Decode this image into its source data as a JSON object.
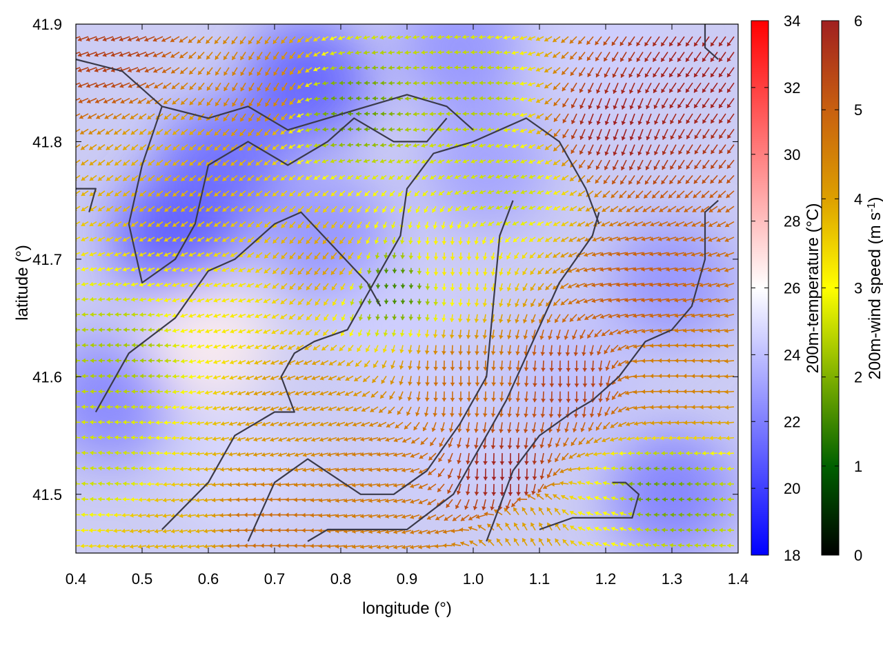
{
  "chart_data": {
    "type": "heatmap",
    "xlabel": "longitude (°)",
    "ylabel": "latitude (°)",
    "xlim": [
      0.4,
      1.4
    ],
    "ylim": [
      41.45,
      41.9
    ],
    "x_ticks": [
      "0.4",
      "0.5",
      "0.6",
      "0.7",
      "0.8",
      "0.9",
      "1.0",
      "1.1",
      "1.2",
      "1.3",
      "1.4"
    ],
    "y_ticks": [
      "41.5",
      "41.6",
      "41.7",
      "41.8",
      "41.9"
    ],
    "temperature_colorbar": {
      "label": "200m-temperature (°C)",
      "range": [
        18,
        34
      ],
      "ticks": [
        "18",
        "20",
        "22",
        "24",
        "26",
        "28",
        "30",
        "32",
        "34"
      ],
      "colors": [
        "#0000ff",
        "#ffffff",
        "#ff0000"
      ]
    },
    "wind_colorbar": {
      "label_main": "200m-wind speed (m s",
      "label_sup": "-1",
      "label_close": ")",
      "range": [
        0,
        6
      ],
      "ticks": [
        "0",
        "1",
        "2",
        "3",
        "4",
        "5",
        "6"
      ],
      "colors": [
        "#000000",
        "#006000",
        "#7fb000",
        "#ffff00",
        "#dda000",
        "#c86010",
        "#a02020"
      ]
    },
    "temperature_blobs": [
      {
        "lon": 0.55,
        "lat": 41.72,
        "t": 20.5
      },
      {
        "lon": 0.75,
        "lat": 41.85,
        "t": 20.8
      },
      {
        "lon": 0.62,
        "lat": 41.78,
        "t": 21.2
      },
      {
        "lon": 0.45,
        "lat": 41.58,
        "t": 22.0
      },
      {
        "lon": 0.78,
        "lat": 41.72,
        "t": 22.5
      },
      {
        "lon": 0.88,
        "lat": 41.64,
        "t": 24.5
      },
      {
        "lon": 1.02,
        "lat": 41.78,
        "t": 23.0
      },
      {
        "lon": 1.3,
        "lat": 41.68,
        "t": 22.5
      },
      {
        "lon": 1.3,
        "lat": 41.5,
        "t": 21.8
      },
      {
        "lon": 1.15,
        "lat": 41.6,
        "t": 24.0
      },
      {
        "lon": 0.95,
        "lat": 41.55,
        "t": 24.5
      },
      {
        "lon": 0.65,
        "lat": 41.52,
        "t": 24.8
      },
      {
        "lon": 0.6,
        "lat": 41.63,
        "t": 26.5
      },
      {
        "lon": 1.2,
        "lat": 41.88,
        "t": 24.5
      },
      {
        "lon": 0.98,
        "lat": 41.88,
        "t": 22.5
      }
    ],
    "wind_field": {
      "description_free": true,
      "grid_step_deg": 0.0125,
      "zones": [
        {
          "lon": 0.48,
          "lat": 41.62,
          "speed": 2.3,
          "dir_deg": 180
        },
        {
          "lon": 0.45,
          "lat": 41.52,
          "speed": 2.6,
          "dir_deg": 175
        },
        {
          "lon": 0.62,
          "lat": 41.66,
          "speed": 3.2,
          "dir_deg": 200
        },
        {
          "lon": 0.55,
          "lat": 41.78,
          "speed": 3.8,
          "dir_deg": 220
        },
        {
          "lon": 0.45,
          "lat": 41.88,
          "speed": 5.5,
          "dir_deg": 200
        },
        {
          "lon": 0.68,
          "lat": 41.85,
          "speed": 4.5,
          "dir_deg": 240
        },
        {
          "lon": 0.82,
          "lat": 41.83,
          "speed": 1.8,
          "dir_deg": 180
        },
        {
          "lon": 0.78,
          "lat": 41.7,
          "speed": 4.0,
          "dir_deg": 230
        },
        {
          "lon": 0.75,
          "lat": 41.58,
          "speed": 4.2,
          "dir_deg": 200
        },
        {
          "lon": 0.85,
          "lat": 41.52,
          "speed": 4.6,
          "dir_deg": 190
        },
        {
          "lon": 0.88,
          "lat": 41.68,
          "speed": 1.5,
          "dir_deg": 270
        },
        {
          "lon": 0.96,
          "lat": 41.7,
          "speed": 3.2,
          "dir_deg": 270
        },
        {
          "lon": 0.98,
          "lat": 41.6,
          "speed": 4.8,
          "dir_deg": 270
        },
        {
          "lon": 1.05,
          "lat": 41.52,
          "speed": 6.0,
          "dir_deg": 270
        },
        {
          "lon": 1.05,
          "lat": 41.76,
          "speed": 2.6,
          "dir_deg": 200
        },
        {
          "lon": 1.0,
          "lat": 41.84,
          "speed": 2.4,
          "dir_deg": 180
        },
        {
          "lon": 1.22,
          "lat": 41.82,
          "speed": 6.0,
          "dir_deg": 250
        },
        {
          "lon": 1.35,
          "lat": 41.86,
          "speed": 6.0,
          "dir_deg": 235
        },
        {
          "lon": 1.25,
          "lat": 41.68,
          "speed": 5.0,
          "dir_deg": 190
        },
        {
          "lon": 1.3,
          "lat": 41.6,
          "speed": 4.5,
          "dir_deg": 180
        },
        {
          "lon": 1.15,
          "lat": 41.6,
          "speed": 5.5,
          "dir_deg": 270
        },
        {
          "lon": 1.28,
          "lat": 41.5,
          "speed": 1.8,
          "dir_deg": 180
        },
        {
          "lon": 1.2,
          "lat": 41.48,
          "speed": 3.0,
          "dir_deg": 160
        },
        {
          "lon": 1.1,
          "lat": 41.47,
          "speed": 4.0,
          "dir_deg": 120
        },
        {
          "lon": 0.55,
          "lat": 41.47,
          "speed": 3.8,
          "dir_deg": 190
        },
        {
          "lon": 0.7,
          "lat": 41.47,
          "speed": 4.8,
          "dir_deg": 180
        }
      ]
    },
    "terrain_contours": [
      [
        [
          0.4,
          41.87
        ],
        [
          0.47,
          41.86
        ],
        [
          0.53,
          41.83
        ],
        [
          0.6,
          41.82
        ],
        [
          0.66,
          41.83
        ],
        [
          0.72,
          41.81
        ],
        [
          0.78,
          41.82
        ],
        [
          0.84,
          41.83
        ],
        [
          0.9,
          41.84
        ],
        [
          0.96,
          41.83
        ],
        [
          1.0,
          41.81
        ]
      ],
      [
        [
          0.53,
          41.83
        ],
        [
          0.5,
          41.78
        ],
        [
          0.48,
          41.73
        ],
        [
          0.5,
          41.68
        ],
        [
          0.55,
          41.7
        ],
        [
          0.58,
          41.73
        ],
        [
          0.6,
          41.78
        ],
        [
          0.66,
          41.8
        ],
        [
          0.72,
          41.78
        ],
        [
          0.78,
          41.8
        ],
        [
          0.82,
          41.82
        ],
        [
          0.88,
          41.8
        ],
        [
          0.93,
          41.8
        ],
        [
          0.96,
          41.82
        ]
      ],
      [
        [
          0.43,
          41.57
        ],
        [
          0.48,
          41.62
        ],
        [
          0.55,
          41.65
        ],
        [
          0.6,
          41.69
        ],
        [
          0.64,
          41.7
        ],
        [
          0.7,
          41.73
        ],
        [
          0.74,
          41.74
        ],
        [
          0.79,
          41.71
        ],
        [
          0.84,
          41.68
        ],
        [
          0.86,
          41.66
        ]
      ],
      [
        [
          0.53,
          41.47
        ],
        [
          0.6,
          41.51
        ],
        [
          0.64,
          41.55
        ],
        [
          0.7,
          41.57
        ],
        [
          0.73,
          41.57
        ],
        [
          0.71,
          41.6
        ],
        [
          0.73,
          41.62
        ],
        [
          0.76,
          41.63
        ],
        [
          0.81,
          41.64
        ],
        [
          0.85,
          41.68
        ],
        [
          0.89,
          41.72
        ],
        [
          0.9,
          41.76
        ],
        [
          0.94,
          41.79
        ],
        [
          1.0,
          41.8
        ],
        [
          1.08,
          41.82
        ],
        [
          1.13,
          41.8
        ],
        [
          1.17,
          41.76
        ],
        [
          1.19,
          41.73
        ]
      ],
      [
        [
          0.66,
          41.46
        ],
        [
          0.7,
          41.51
        ],
        [
          0.75,
          41.53
        ],
        [
          0.83,
          41.5
        ],
        [
          0.88,
          41.5
        ],
        [
          0.93,
          41.52
        ],
        [
          0.98,
          41.56
        ],
        [
          1.02,
          41.6
        ],
        [
          1.03,
          41.66
        ],
        [
          1.04,
          41.72
        ],
        [
          1.06,
          41.75
        ]
      ],
      [
        [
          0.75,
          41.46
        ],
        [
          0.78,
          41.47
        ],
        [
          0.86,
          41.47
        ],
        [
          0.9,
          41.47
        ],
        [
          0.97,
          41.5
        ],
        [
          1.01,
          41.54
        ],
        [
          1.05,
          41.58
        ],
        [
          1.09,
          41.63
        ],
        [
          1.13,
          41.68
        ],
        [
          1.18,
          41.72
        ],
        [
          1.19,
          41.74
        ]
      ],
      [
        [
          1.02,
          41.46
        ],
        [
          1.06,
          41.52
        ],
        [
          1.1,
          41.55
        ],
        [
          1.15,
          41.57
        ],
        [
          1.18,
          41.58
        ],
        [
          1.22,
          41.6
        ],
        [
          1.26,
          41.63
        ],
        [
          1.3,
          41.64
        ],
        [
          1.33,
          41.66
        ],
        [
          1.35,
          41.7
        ],
        [
          1.35,
          41.74
        ],
        [
          1.37,
          41.75
        ]
      ],
      [
        [
          1.1,
          41.47
        ],
        [
          1.15,
          41.48
        ],
        [
          1.2,
          41.48
        ],
        [
          1.24,
          41.48
        ],
        [
          1.25,
          41.5
        ],
        [
          1.23,
          41.51
        ],
        [
          1.21,
          41.51
        ]
      ],
      [
        [
          0.4,
          41.76
        ],
        [
          0.43,
          41.76
        ],
        [
          0.42,
          41.74
        ]
      ],
      [
        [
          1.35,
          41.9
        ],
        [
          1.35,
          41.88
        ],
        [
          1.37,
          41.87
        ]
      ]
    ]
  }
}
